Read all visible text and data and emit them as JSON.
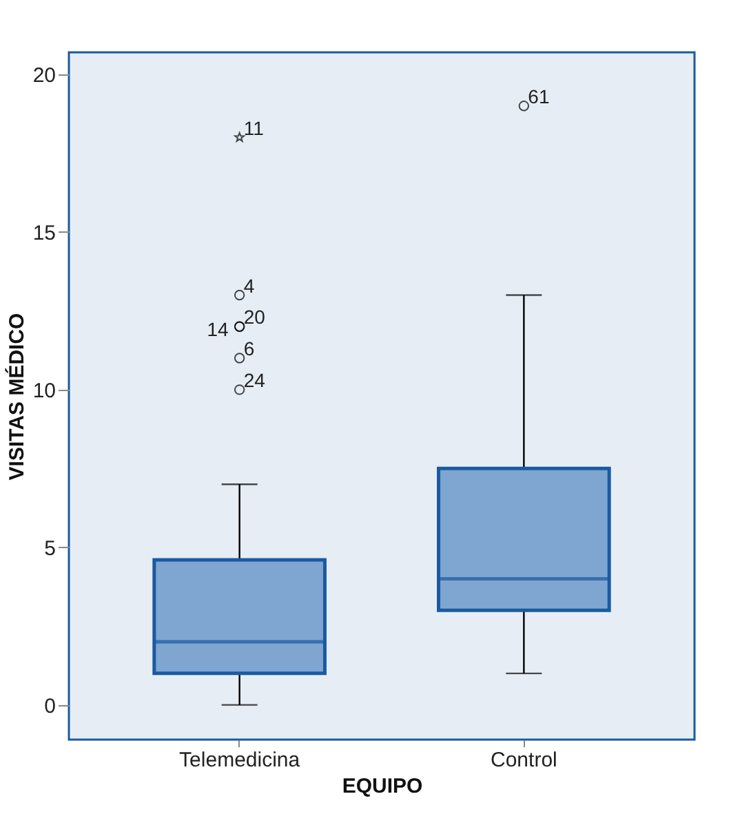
{
  "chart_data": {
    "type": "box",
    "xlabel": "EQUIPO",
    "ylabel": "VISITAS MÉDICO",
    "categories": [
      "Telemedicina",
      "Control"
    ],
    "ylim": [
      -1.1,
      20.7
    ],
    "yticks": [
      0,
      5,
      10,
      15,
      20
    ],
    "grid": false,
    "series": [
      {
        "type": "box",
        "color": "#7fa6d0",
        "boxes": [
          {
            "low": 0,
            "q1": 1,
            "median": 2,
            "q3": 4.6,
            "high": 7
          },
          {
            "low": 1,
            "q1": 3,
            "median": 4,
            "q3": 7.5,
            "high": 13
          }
        ]
      },
      {
        "type": "scatter",
        "marker": "circle",
        "color": "#000000",
        "x": [
          "Telemedicina",
          "Telemedicina",
          "Telemedicina",
          "Telemedicina",
          "Telemedicina",
          "Control"
        ],
        "values": [
          13,
          12,
          12,
          11,
          10,
          19
        ]
      },
      {
        "type": "scatter",
        "marker": "star",
        "color": "#000000",
        "x": [
          "Telemedicina"
        ],
        "values": [
          18
        ]
      }
    ],
    "annotations": [
      {
        "text": "11",
        "x": "Telemedicina",
        "y": 18
      },
      {
        "text": "4",
        "x": "Telemedicina",
        "y": 13
      },
      {
        "text": "20",
        "x": "Telemedicina",
        "y": 12
      },
      {
        "text": "14",
        "x": "Telemedicina",
        "y": 12
      },
      {
        "text": "6",
        "x": "Telemedicina",
        "y": 11
      },
      {
        "text": "24",
        "x": "Telemedicina",
        "y": 10
      },
      {
        "text": "61",
        "x": "Control",
        "y": 19
      }
    ]
  }
}
